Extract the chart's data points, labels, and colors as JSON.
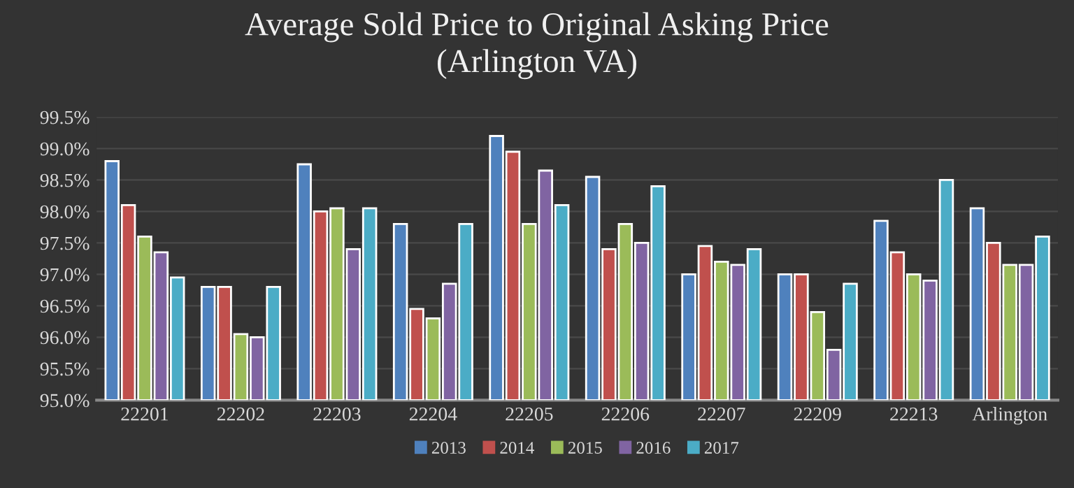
{
  "chart_data": {
    "type": "bar",
    "title": "Average Sold Price to Original Asking Price\n(Arlington VA)",
    "categories": [
      "22201",
      "22202",
      "22203",
      "22204",
      "22205",
      "22206",
      "22207",
      "22209",
      "22213",
      "Arlington"
    ],
    "series": [
      {
        "name": "2013",
        "color": "#4f81bd",
        "values": [
          98.8,
          96.8,
          98.75,
          97.8,
          99.2,
          98.55,
          97.0,
          97.0,
          97.85,
          98.05
        ]
      },
      {
        "name": "2014",
        "color": "#c0504d",
        "values": [
          98.1,
          96.8,
          98.0,
          96.45,
          98.95,
          97.4,
          97.45,
          97.0,
          97.35,
          97.5
        ]
      },
      {
        "name": "2015",
        "color": "#9bbb59",
        "values": [
          97.6,
          96.05,
          98.05,
          96.3,
          97.8,
          97.8,
          97.2,
          96.4,
          97.0,
          97.15
        ]
      },
      {
        "name": "2016",
        "color": "#8064a2",
        "values": [
          97.35,
          96.0,
          97.4,
          96.85,
          98.65,
          97.5,
          97.15,
          95.8,
          96.9,
          97.15
        ]
      },
      {
        "name": "2017",
        "color": "#4bacc6",
        "values": [
          96.95,
          96.8,
          98.05,
          97.8,
          98.1,
          98.4,
          97.4,
          96.85,
          98.5,
          97.6
        ]
      }
    ],
    "ylim": [
      95.0,
      99.5
    ],
    "yticks": [
      {
        "value": 95.0,
        "label": "95.0%"
      },
      {
        "value": 95.5,
        "label": "95.5%"
      },
      {
        "value": 96.0,
        "label": "96.0%"
      },
      {
        "value": 96.5,
        "label": "96.5%"
      },
      {
        "value": 97.0,
        "label": "97.0%"
      },
      {
        "value": 97.5,
        "label": "97.5%"
      },
      {
        "value": 98.0,
        "label": "98.0%"
      },
      {
        "value": 98.5,
        "label": "98.5%"
      },
      {
        "value": 99.0,
        "label": "99.0%"
      },
      {
        "value": 99.5,
        "label": "99.5%"
      }
    ],
    "grid": "y",
    "legend": "bottom"
  }
}
